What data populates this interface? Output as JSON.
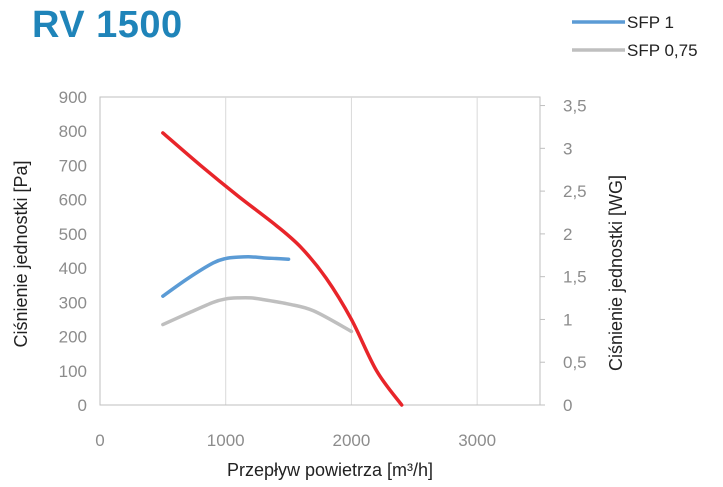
{
  "title": "RV 1500",
  "chart_data": {
    "type": "line",
    "title": "RV 1500",
    "xlabel": "Przepływ powietrza [m³/h]",
    "ylabel": "Ciśnienie jednostki [Pa]",
    "y2label": "Ciśnienie jednostki [WG]",
    "xlim": [
      0,
      3500
    ],
    "ylim": [
      0,
      900
    ],
    "y2lim": [
      0,
      3.6
    ],
    "xticks": [
      0,
      1000,
      2000,
      3000
    ],
    "xtick_labels": [
      "0",
      "1000",
      "2000",
      "3000"
    ],
    "yticks": [
      0,
      100,
      200,
      300,
      400,
      500,
      600,
      700,
      800,
      900
    ],
    "ytick_labels": [
      "0",
      "100",
      "200",
      "300",
      "400",
      "500",
      "600",
      "700",
      "800",
      "900"
    ],
    "y2ticks": [
      0,
      0.5,
      1,
      1.5,
      2,
      2.5,
      3,
      3.5
    ],
    "y2tick_labels": [
      "0",
      "0,5",
      "1",
      "1,5",
      "2",
      "2,5",
      "3",
      "3,5"
    ],
    "grid": "vertical",
    "legend": "top-right",
    "series": [
      {
        "name": "",
        "color": "#e8252a",
        "x": [
          500,
          800,
          1100,
          1400,
          1600,
          1800,
          2000,
          2200,
          2400
        ],
        "y": [
          795,
          700,
          610,
          525,
          460,
          370,
          250,
          100,
          0
        ]
      },
      {
        "name": "SFP 1",
        "color": "#5b9bd5",
        "x": [
          500,
          700,
          900,
          1000,
          1100,
          1200,
          1300,
          1400,
          1500
        ],
        "y": [
          318,
          370,
          415,
          428,
          432,
          433,
          430,
          428,
          426
        ]
      },
      {
        "name": "SFP 0,75",
        "color": "#bfbfbf",
        "x": [
          500,
          700,
          900,
          1000,
          1100,
          1200,
          1300,
          1500,
          1700,
          2000
        ],
        "y": [
          235,
          268,
          300,
          310,
          313,
          313,
          308,
          295,
          275,
          215
        ]
      }
    ]
  }
}
